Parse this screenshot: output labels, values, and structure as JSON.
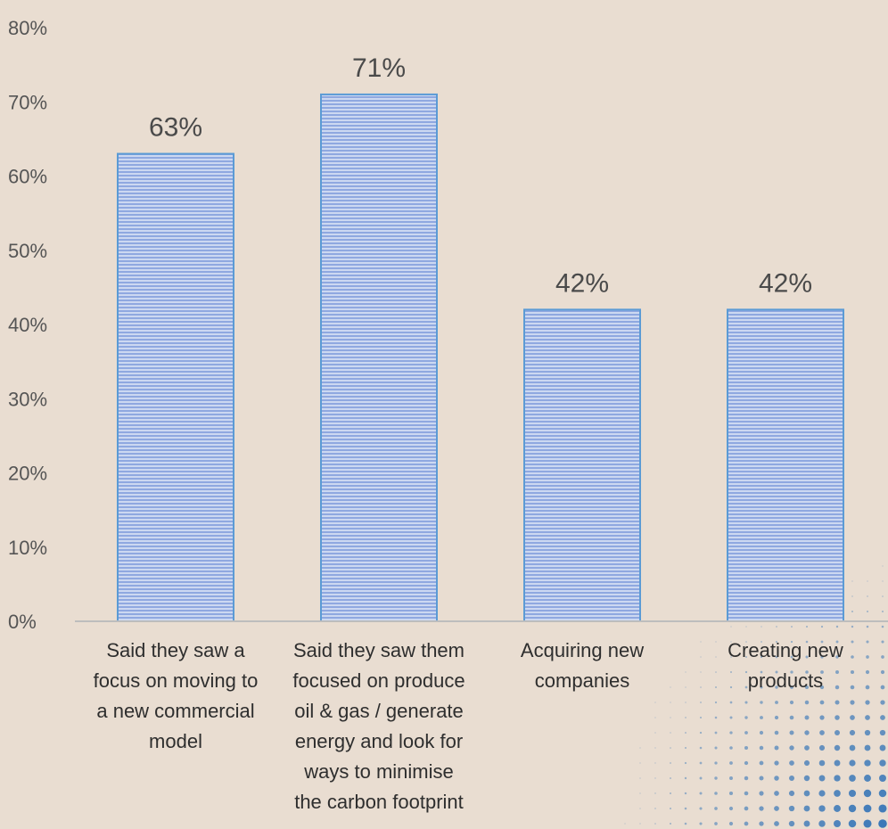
{
  "chart_data": {
    "type": "bar",
    "categories": [
      "Said they saw a focus on moving to a new commercial model",
      "Said they saw them focused on produce oil & gas / generate energy and look for ways to minimise the carbon footprint",
      "Acquiring new companies",
      "Creating new products"
    ],
    "category_lines": [
      [
        "Said they saw a",
        "focus on moving to",
        "a new commercial",
        "model"
      ],
      [
        "Said they saw them",
        "focused on produce",
        "oil & gas / generate",
        "energy and look for",
        "ways to minimise",
        "the carbon footprint"
      ],
      [
        "Acquiring new",
        "companies"
      ],
      [
        "Creating new",
        "products"
      ]
    ],
    "values": [
      63,
      71,
      42,
      42
    ],
    "data_labels": [
      "63%",
      "71%",
      "42%",
      "42%"
    ],
    "y_ticks": [
      "0%",
      "10%",
      "20%",
      "30%",
      "40%",
      "50%",
      "60%",
      "70%",
      "80%"
    ],
    "ylim": [
      0,
      80
    ],
    "title": "",
    "xlabel": "",
    "ylabel": "",
    "grid": false,
    "legend": false,
    "colors": {
      "background": "#e9ddd1",
      "bar_fill": "#8fa8e0",
      "bar_stripe": "#ffffff",
      "bar_edge": "#5b9bd5",
      "axis": "#bdbdbd",
      "dots": "#3a78b8"
    }
  }
}
